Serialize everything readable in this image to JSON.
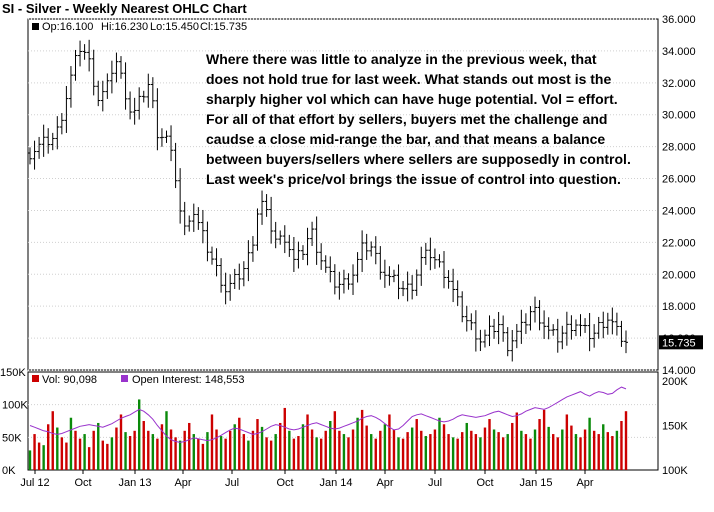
{
  "chart_data": [
    {
      "type": "ohlc",
      "title": "SI - Silver - Weekly Nearest OHLC Chart",
      "legend": {
        "op_label": "Op:16.100",
        "hi_label": "Hi:16.230",
        "lo_label": "Lo:15.450",
        "cl_label": "Cl:15.735"
      },
      "last_price_label": "15.735",
      "last_price": 15.735,
      "ylim": [
        14,
        36
      ],
      "yticks": [
        "14.000",
        "16.000",
        "18.000",
        "20.000",
        "22.000",
        "24.000",
        "26.000",
        "28.000",
        "30.000",
        "32.000",
        "34.000",
        "36.000"
      ],
      "x_labels": [
        "Jul 12",
        "Oct",
        "Jan 13",
        "Apr",
        "Jul",
        "Oct",
        "Jan 14",
        "Apr",
        "Jul",
        "Oct",
        "Jan 15",
        "Apr"
      ],
      "close_path": [
        [
          0,
          27.6
        ],
        [
          3,
          28.2
        ],
        [
          6,
          28.6
        ],
        [
          8,
          30.5
        ],
        [
          10,
          32.8
        ],
        [
          12,
          34.4
        ],
        [
          14,
          33.2
        ],
        [
          16,
          31.0
        ],
        [
          18,
          31.6
        ],
        [
          20,
          33.6
        ],
        [
          22,
          31.8
        ],
        [
          24,
          29.8
        ],
        [
          26,
          31.0
        ],
        [
          28,
          32.0
        ],
        [
          30,
          28.8
        ],
        [
          32,
          28.6
        ],
        [
          34,
          26.5
        ],
        [
          36,
          22.5
        ],
        [
          38,
          24.2
        ],
        [
          40,
          22.8
        ],
        [
          42,
          21.4
        ],
        [
          44,
          20.2
        ],
        [
          46,
          19.0
        ],
        [
          48,
          19.6
        ],
        [
          50,
          20.2
        ],
        [
          52,
          21.6
        ],
        [
          54,
          24.8
        ],
        [
          56,
          23.4
        ],
        [
          58,
          22.0
        ],
        [
          60,
          22.4
        ],
        [
          62,
          20.8
        ],
        [
          64,
          21.4
        ],
        [
          66,
          22.8
        ],
        [
          68,
          21.2
        ],
        [
          70,
          20.0
        ],
        [
          72,
          19.3
        ],
        [
          74,
          19.5
        ],
        [
          76,
          20.1
        ],
        [
          78,
          21.6
        ],
        [
          80,
          21.8
        ],
        [
          82,
          20.6
        ],
        [
          84,
          19.8
        ],
        [
          86,
          19.5
        ],
        [
          88,
          19.0
        ],
        [
          90,
          19.4
        ],
        [
          92,
          21.0
        ],
        [
          94,
          21.3
        ],
        [
          96,
          20.6
        ],
        [
          98,
          19.9
        ],
        [
          100,
          18.5
        ],
        [
          102,
          17.3
        ],
        [
          104,
          16.6
        ],
        [
          106,
          15.8
        ],
        [
          108,
          16.4
        ],
        [
          110,
          16.9
        ],
        [
          112,
          15.5
        ],
        [
          114,
          16.2
        ],
        [
          116,
          16.8
        ],
        [
          118,
          17.9
        ],
        [
          120,
          17.2
        ],
        [
          122,
          16.3
        ],
        [
          124,
          16.0
        ],
        [
          126,
          16.6
        ],
        [
          128,
          17.0
        ],
        [
          130,
          16.5
        ],
        [
          132,
          16.1
        ],
        [
          134,
          16.9
        ],
        [
          136,
          17.3
        ],
        [
          138,
          16.3
        ],
        [
          140,
          15.735
        ]
      ],
      "annotation": [
        "Where there was little to analyze in the previous week, that",
        "does not hold true for last week.  What stands out most is the",
        "sharply higher vol which can have huge potential.  Vol = effort.",
        "For all of that effort by sellers, buyers met the challenge and",
        "caudse a close mid-range the bar, and that means a balance",
        "between buyers/sellers where sellers are supposedly in control.",
        "Last week's price/vol brings the issue of control into question."
      ]
    },
    {
      "type": "bar",
      "series": [
        {
          "name": "Vol: 90,098",
          "color_up": "#0a8a0a",
          "color_down": "#cc0000",
          "values": [
            30,
            55,
            42,
            38,
            70,
            90,
            65,
            50,
            42,
            80,
            60,
            48,
            55,
            35,
            60,
            72,
            45,
            40,
            50,
            65,
            85,
            58,
            52,
            60,
            108,
            75,
            60,
            55,
            48,
            70,
            90,
            62,
            50,
            45,
            60,
            72,
            55,
            48,
            40,
            58,
            85,
            62,
            52,
            48,
            60,
            70,
            80,
            55,
            45,
            60,
            78,
            66,
            50,
            45,
            55,
            72,
            95,
            60,
            48,
            52,
            70,
            85,
            62,
            50,
            48,
            60,
            75,
            90,
            60,
            55,
            50,
            62,
            80,
            92,
            68,
            55,
            48,
            60,
            70,
            85,
            62,
            50,
            48,
            58,
            65,
            78,
            60,
            52,
            55,
            62,
            80,
            70,
            55,
            50,
            48,
            58,
            72,
            60,
            55,
            50,
            65,
            78,
            62,
            58,
            50,
            55,
            72,
            88,
            60,
            55,
            48,
            62,
            78,
            92,
            66,
            55,
            50,
            62,
            85,
            68,
            55,
            50,
            62,
            80,
            60,
            55,
            70,
            58,
            52,
            60,
            75,
            90
          ]
        },
        {
          "name": "Open Interest: 148,553",
          "color": "#9933cc",
          "values": [
            150,
            148,
            146,
            144,
            143,
            141,
            140,
            141,
            143,
            145,
            147,
            149,
            150,
            151,
            150,
            149,
            148,
            150,
            152,
            155,
            158,
            160,
            162,
            165,
            168,
            166,
            162,
            157,
            150,
            144,
            138,
            134,
            132,
            131,
            132,
            134,
            136,
            135,
            134,
            133,
            134,
            136,
            139,
            142,
            145,
            147,
            146,
            144,
            142,
            140,
            141,
            143,
            146,
            149,
            151,
            150,
            148,
            146,
            145,
            146,
            148,
            150,
            152,
            153,
            151,
            149,
            147,
            146,
            147,
            149,
            151,
            153,
            155,
            158,
            160,
            161,
            159,
            156,
            152,
            148,
            145,
            146,
            150,
            155,
            160,
            162,
            163,
            161,
            159,
            157,
            155,
            154,
            155,
            157,
            160,
            162,
            161,
            160,
            159,
            160,
            161,
            163,
            165,
            166,
            164,
            162,
            160,
            161,
            163,
            166,
            168,
            170,
            169,
            168,
            170,
            173,
            176,
            179,
            182,
            184,
            186,
            188,
            185,
            183,
            186,
            188,
            187,
            185,
            186,
            190,
            193,
            191
          ]
        }
      ],
      "y_left_ticks": [
        "0K",
        "50K",
        "100K",
        "150K"
      ],
      "y_right_ticks": [
        "100K",
        "150K",
        "200K"
      ]
    }
  ]
}
